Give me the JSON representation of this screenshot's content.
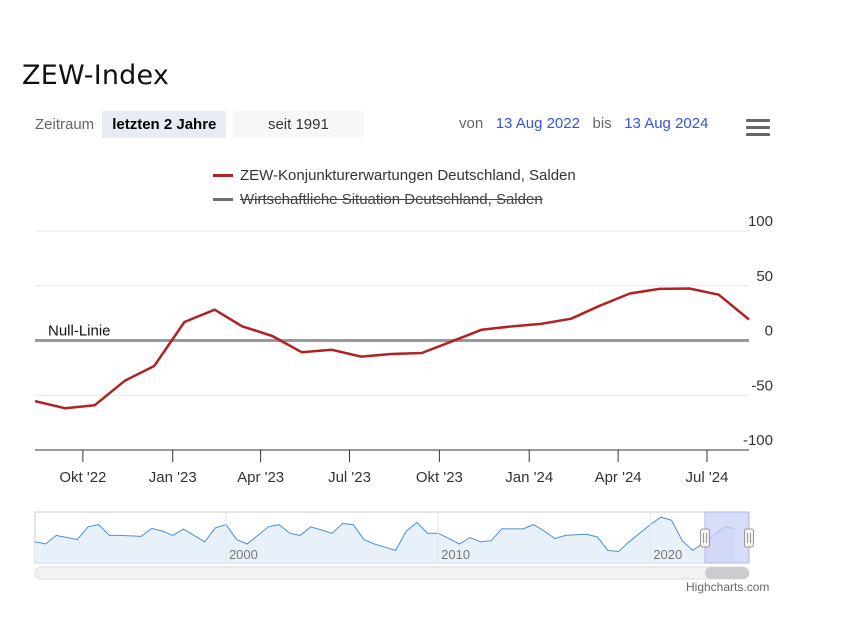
{
  "title": "ZEW-Index",
  "controls": {
    "zeitraum_label": "Zeitraum",
    "buttons": [
      {
        "label": "letzten 2 Jahre",
        "active": true
      },
      {
        "label": "seit 1991",
        "active": false
      }
    ],
    "von_label": "von",
    "from_date": "13 Aug 2022",
    "bis_label": "bis",
    "to_date": "13 Aug 2024"
  },
  "menu_icon": "hamburger-menu-icon",
  "colors": {
    "series_expectations": "#b22222",
    "series_situation": "#6e6e6e",
    "zero_line": "#999999",
    "navigator_mask": "#c9d2f5",
    "link": "#3355dd"
  },
  "chart_data": {
    "type": "line",
    "title": "",
    "xlabel": "",
    "ylabel": "",
    "ylim": [
      -100,
      100
    ],
    "yticks": [
      "100",
      "50",
      "0",
      "-50",
      "-100"
    ],
    "xticks": [
      "Okt '22",
      "Jan '23",
      "Apr '23",
      "Jul '23",
      "Okt '23",
      "Jan '24",
      "Apr '24",
      "Jul '24"
    ],
    "y_axis_position": "right",
    "grid": true,
    "legend_position": "top-center",
    "plot_lines": [
      {
        "label": "Null-Linie",
        "value": 0
      }
    ],
    "series": [
      {
        "name": "ZEW-Konjunkturerwartungen Deutschland, Salden",
        "visible": true,
        "x": [
          "2022-08-13",
          "2022-09-13",
          "2022-10-13",
          "2022-11-13",
          "2022-12-13",
          "2023-01-13",
          "2023-02-13",
          "2023-03-13",
          "2023-04-13",
          "2023-05-13",
          "2023-06-13",
          "2023-07-13",
          "2023-08-13",
          "2023-09-13",
          "2023-10-13",
          "2023-11-13",
          "2023-12-13",
          "2024-01-13",
          "2024-02-13",
          "2024-03-13",
          "2024-04-13",
          "2024-05-13",
          "2024-06-13",
          "2024-07-13",
          "2024-08-13"
        ],
        "values": [
          -55.3,
          -61.9,
          -59.2,
          -36.7,
          -23.3,
          16.9,
          28.1,
          13.0,
          4.1,
          -10.7,
          -8.5,
          -14.7,
          -12.3,
          -11.4,
          -1.1,
          9.8,
          12.8,
          15.2,
          19.9,
          31.7,
          42.9,
          47.1,
          47.5,
          41.8,
          19.2
        ]
      },
      {
        "name": "Wirtschaftliche Situation Deutschland, Salden",
        "visible": false,
        "values": []
      }
    ],
    "navigator": {
      "xticks": [
        "2000",
        "2010",
        "2020"
      ],
      "x": [
        1991,
        1992,
        1993,
        1994,
        1995,
        1996,
        1997,
        1998,
        1999,
        2000,
        2001,
        2002,
        2003,
        2004,
        2005,
        2006,
        2007,
        2008,
        2009,
        2010,
        2011,
        2012,
        2013,
        2014,
        2015,
        2016,
        2017,
        2018,
        2019,
        2020,
        2021,
        2022,
        2023,
        2024
      ],
      "values": [
        -20,
        10,
        -10,
        60,
        10,
        5,
        30,
        40,
        -20,
        60,
        -30,
        50,
        20,
        50,
        20,
        60,
        -30,
        -60,
        70,
        20,
        -30,
        -20,
        40,
        40,
        30,
        10,
        15,
        -60,
        -20,
        60,
        80,
        -60,
        10,
        40
      ]
    }
  },
  "credits": "Highcharts.com"
}
